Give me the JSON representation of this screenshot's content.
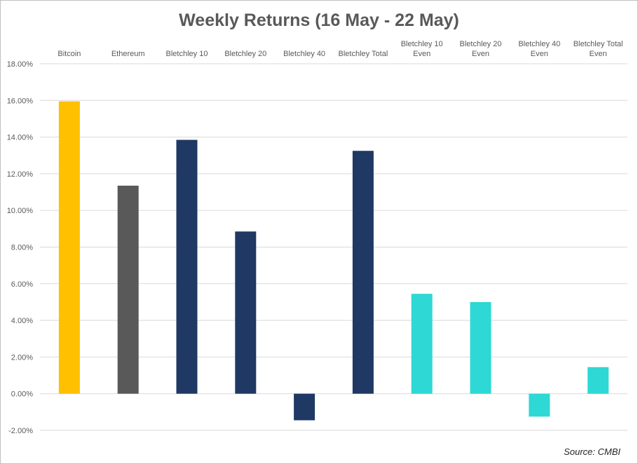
{
  "chart_data": {
    "type": "bar",
    "title": "Weekly Returns (16 May - 22 May)",
    "categories": [
      [
        "Bitcoin"
      ],
      [
        "Ethereum"
      ],
      [
        "Bletchley 10"
      ],
      [
        "Bletchley 20"
      ],
      [
        "Bletchley 40"
      ],
      [
        "Bletchley Total"
      ],
      [
        "Bletchley 10",
        "Even"
      ],
      [
        "Bletchley 20",
        "Even"
      ],
      [
        "Bletchley 40",
        "Even"
      ],
      [
        "Bletchley Total",
        "Even"
      ]
    ],
    "values": [
      15.95,
      11.35,
      13.85,
      8.85,
      -1.45,
      13.25,
      5.45,
      5.0,
      -1.25,
      1.45
    ],
    "colors": [
      "#FFC000",
      "#595959",
      "#1F3864",
      "#1F3864",
      "#1F3864",
      "#1F3864",
      "#2ED8D5",
      "#2ED8D5",
      "#2ED8D5",
      "#2ED8D5"
    ],
    "ylim": [
      -2,
      18
    ],
    "yticks": [
      18,
      16,
      14,
      12,
      10,
      8,
      6,
      4,
      2,
      0,
      -2
    ],
    "ytick_labels": [
      "18.00%",
      "16.00%",
      "14.00%",
      "12.00%",
      "10.00%",
      "8.00%",
      "6.00%",
      "4.00%",
      "2.00%",
      "0.00%",
      "-2.00%"
    ],
    "category_axis_position": "top",
    "grid": true,
    "source": "Source: CMBI"
  }
}
